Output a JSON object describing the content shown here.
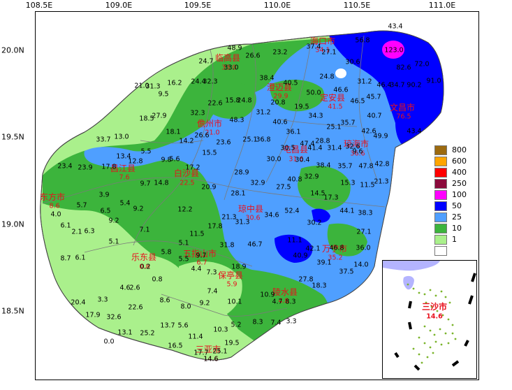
{
  "axes": {
    "lon_labels": [
      "108.5E",
      "109.0E",
      "109.5E",
      "110.0E",
      "110.5E",
      "111.0E"
    ],
    "lat_labels": [
      "20.0N",
      "19.5N",
      "19.0N",
      "18.5N"
    ]
  },
  "legend": {
    "items": [
      {
        "label": "800",
        "color": "#9c6a10"
      },
      {
        "label": "600",
        "color": "#ffa500"
      },
      {
        "label": "400",
        "color": "#ff0000"
      },
      {
        "label": "250",
        "color": "#8b0a3c"
      },
      {
        "label": "100",
        "color": "#ff00ff"
      },
      {
        "label": "50",
        "color": "#0000ff"
      },
      {
        "label": "25",
        "color": "#4f9fff"
      },
      {
        "label": "10",
        "color": "#3cb43c"
      },
      {
        "label": "1",
        "color": "#aaf08c"
      },
      {
        "label": "",
        "color": "#ffffff"
      }
    ]
  },
  "cities": [
    {
      "name": "海口市",
      "value": "34.1"
    },
    {
      "name": "临高县",
      "value": "33.0"
    },
    {
      "name": "澄迈县",
      "value": "29.9"
    },
    {
      "name": "定安县",
      "value": "41.5"
    },
    {
      "name": "文昌市",
      "value": "76.5"
    },
    {
      "name": "儋州市",
      "value": "21.0"
    },
    {
      "name": "屯昌县",
      "value": "31.6"
    },
    {
      "name": "琼海市",
      "value": "36.6"
    },
    {
      "name": "昌江县",
      "value": "7.6"
    },
    {
      "name": "白沙县",
      "value": "22.5"
    },
    {
      "name": "东方市",
      "value": "8.6"
    },
    {
      "name": "琼中县",
      "value": "30.6"
    },
    {
      "name": "万宁市",
      "value": "35.2"
    },
    {
      "name": "五指山市",
      "value": "6.7"
    },
    {
      "name": "乐东县",
      "value": "0.8"
    },
    {
      "name": "保亭县",
      "value": "5.9"
    },
    {
      "name": "陵水县",
      "value": "4.8"
    },
    {
      "name": "三亚市",
      "value": "14.6"
    },
    {
      "name": "三沙市",
      "value": "14.6"
    }
  ],
  "stations": [
    "43.4",
    "56.8",
    "123.0",
    "82.6",
    "72.0",
    "37.4",
    "27.1",
    "48.9",
    "26.6",
    "23.2",
    "24.7",
    "33.0",
    "30.6",
    "31.2",
    "46.4",
    "34.7",
    "90.2",
    "91.0",
    "21.0",
    "31.3",
    "16.2",
    "24.4",
    "32.3",
    "38.4",
    "40.5",
    "24.8",
    "46.6",
    "9.5",
    "22.6",
    "15.8",
    "24.8",
    "20.8",
    "19.5",
    "46.5",
    "45.7",
    "50.0",
    "48.3",
    "31.2",
    "40.6",
    "34.3",
    "25.1",
    "35.7",
    "40.7",
    "18.5",
    "27.9",
    "32.3",
    "18.1",
    "26.6",
    "36.1",
    "42.6",
    "49.9",
    "43.4",
    "33.7",
    "13.0",
    "14.2",
    "23.6",
    "25.1",
    "36.8",
    "30.5",
    "47.4",
    "28.8",
    "31.4",
    "41.4",
    "32.6",
    "13.4",
    "5.5",
    "9.8",
    "5.6",
    "15.5",
    "30.0",
    "30.4",
    "42.8",
    "23.4",
    "23.9",
    "17.8",
    "12.8",
    "17.2",
    "28.9",
    "38.4",
    "35.7",
    "47.8",
    "9.6",
    "14.8",
    "32.9",
    "40.8",
    "32.9",
    "15.3",
    "11.5",
    "21.3",
    "3.9",
    "5.4",
    "9.7",
    "20.9",
    "28.1",
    "27.5",
    "14.5",
    "17.3",
    "5.7",
    "6.5",
    "9.2",
    "12.2",
    "21.3",
    "34.6",
    "52.4",
    "44.1",
    "38.3",
    "4.0",
    "9.2",
    "6.1",
    "2.1",
    "6.3",
    "7.1",
    "17.8",
    "31.3",
    "30.2",
    "27.1",
    "5.1",
    "11.5",
    "31.8",
    "46.7",
    "11.1",
    "42.1",
    "46.8",
    "36.0",
    "8.7",
    "6.1",
    "5.8",
    "5.1",
    "5.5",
    "9.7",
    "18.9",
    "40.9",
    "39.1",
    "14.0",
    "0.2",
    "4.4",
    "7.3",
    "37.5",
    "0.8",
    "27.8",
    "4.6",
    "2.6",
    "7.4",
    "18.3",
    "20.4",
    "3.3",
    "8.6",
    "10.9",
    "4.7",
    "8.3",
    "22.6",
    "9.2",
    "8.0",
    "10.1",
    "17.9",
    "32.6",
    "13.7",
    "5.6",
    "8.3",
    "5.2",
    "7.4",
    "3.3",
    "25.2",
    "10.3",
    "0.0",
    "13.1",
    "11.4",
    "19.5",
    "16.5",
    "17.7",
    "25.1",
    "14.6"
  ]
}
